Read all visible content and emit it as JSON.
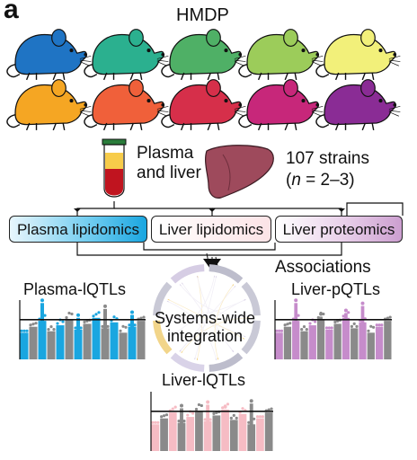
{
  "figure": {
    "panel_letter": "a",
    "title": "HMDP",
    "sample_label_line1": "Plasma",
    "sample_label_line2": "and liver",
    "strains_line1": "107 strains",
    "strains_paren_open": "(",
    "strains_n": "n",
    "strains_rest": " = 2–3)",
    "assays": [
      {
        "label": "Plasma lipidomics",
        "color": "#1aa6e0"
      },
      {
        "label": "Liver lipidomics",
        "color": "#f6c6cc"
      },
      {
        "label": "Liver proteomics",
        "color": "#c58bc9"
      }
    ],
    "associations_label": "Associations",
    "integration_line1": "Systems-wide",
    "integration_line2": "integration",
    "qtl_panels": [
      {
        "label": "Plasma-lQTLs",
        "color": "#1aa6e0"
      },
      {
        "label": "Liver-pQTLs",
        "color": "#c68ccb"
      },
      {
        "label": "Liver-lQTLs",
        "color": "#f6bcc4"
      }
    ]
  },
  "colors": {
    "mice_top_row": [
      "#1f74c4",
      "#2bb08f",
      "#4fb066",
      "#9ccc5a",
      "#f2f07a"
    ],
    "mice_bottom_row": [
      "#f5a623",
      "#f0603a",
      "#d62f4a",
      "#c7277a",
      "#8a2c95"
    ],
    "liver": "#9e4a5c",
    "blood": "#c0141f",
    "plasma": "#f7cc4a",
    "manhattan_gray": "#8a8a8a"
  }
}
